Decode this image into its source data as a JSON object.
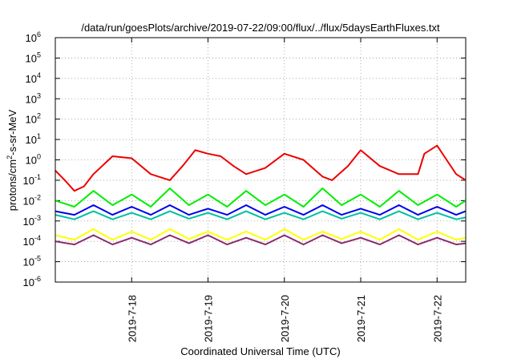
{
  "chart_data": {
    "type": "line",
    "title": "/data/run/goesPlots/archive/2019-07-22/09:00/flux/../flux/5daysEarthFluxes.txt",
    "xlabel": "Coordinated Universal Time (UTC)",
    "ylabel_parts": {
      "pre": "protons/cm",
      "sup": "2",
      "post": "-s-sr-MeV"
    },
    "y_scale": "log",
    "ylim": [
      1e-06,
      1000000.0
    ],
    "y_ticks": [
      {
        "value": 1e-06,
        "base": "10",
        "exp": "-6"
      },
      {
        "value": 1e-05,
        "base": "10",
        "exp": "-5"
      },
      {
        "value": 0.0001,
        "base": "10",
        "exp": "-4"
      },
      {
        "value": 0.001,
        "base": "10",
        "exp": "-3"
      },
      {
        "value": 0.01,
        "base": "10",
        "exp": "-2"
      },
      {
        "value": 0.1,
        "base": "10",
        "exp": "-1"
      },
      {
        "value": 1,
        "base": "10",
        "exp": "0"
      },
      {
        "value": 10,
        "base": "10",
        "exp": "1"
      },
      {
        "value": 100,
        "base": "10",
        "exp": "2"
      },
      {
        "value": 1000,
        "base": "10",
        "exp": "3"
      },
      {
        "value": 10000,
        "base": "10",
        "exp": "4"
      },
      {
        "value": 100000,
        "base": "10",
        "exp": "5"
      },
      {
        "value": 1000000,
        "base": "10",
        "exp": "6"
      }
    ],
    "xlim": [
      "2019-07-17T00:00",
      "2019-07-22T09:00"
    ],
    "x_ticks": [
      {
        "value": "2019-07-18",
        "label": "2019-7-18"
      },
      {
        "value": "2019-07-19",
        "label": "2019-7-19"
      },
      {
        "value": "2019-07-20",
        "label": "2019-7-20"
      },
      {
        "value": "2019-07-21",
        "label": "2019-7-21"
      },
      {
        "value": "2019-07-22",
        "label": "2019-7-22"
      }
    ],
    "grid": true,
    "legend": "none",
    "series": [
      {
        "color": "#8b2a6e",
        "x": [
          "2019-07-17T00:00",
          "2019-07-17T06:00",
          "2019-07-17T12:00",
          "2019-07-17T18:00",
          "2019-07-18T00:00",
          "2019-07-18T06:00",
          "2019-07-18T12:00",
          "2019-07-18T18:00",
          "2019-07-19T00:00",
          "2019-07-19T06:00",
          "2019-07-19T12:00",
          "2019-07-19T18:00",
          "2019-07-20T00:00",
          "2019-07-20T06:00",
          "2019-07-20T12:00",
          "2019-07-20T18:00",
          "2019-07-21T00:00",
          "2019-07-21T06:00",
          "2019-07-21T12:00",
          "2019-07-21T18:00",
          "2019-07-22T00:00",
          "2019-07-22T06:00",
          "2019-07-22T09:00"
        ],
        "y": [
          0.0001,
          7e-05,
          0.0002,
          7e-05,
          0.00015,
          7e-05,
          0.0002,
          8e-05,
          0.0002,
          7e-05,
          0.00015,
          7e-05,
          0.0002,
          7e-05,
          0.0002,
          8e-05,
          0.00015,
          7e-05,
          0.0002,
          7e-05,
          0.00015,
          7e-05,
          8e-05
        ]
      },
      {
        "color": "#ffff00",
        "x": [
          "2019-07-17T00:00",
          "2019-07-17T06:00",
          "2019-07-17T12:00",
          "2019-07-17T18:00",
          "2019-07-18T00:00",
          "2019-07-18T06:00",
          "2019-07-18T12:00",
          "2019-07-18T18:00",
          "2019-07-19T00:00",
          "2019-07-19T06:00",
          "2019-07-19T12:00",
          "2019-07-19T18:00",
          "2019-07-20T00:00",
          "2019-07-20T06:00",
          "2019-07-20T12:00",
          "2019-07-20T18:00",
          "2019-07-21T00:00",
          "2019-07-21T06:00",
          "2019-07-21T12:00",
          "2019-07-21T18:00",
          "2019-07-22T00:00",
          "2019-07-22T06:00",
          "2019-07-22T09:00"
        ],
        "y": [
          0.0002,
          0.00012,
          0.0004,
          0.00012,
          0.0003,
          0.00012,
          0.0004,
          0.00013,
          0.0003,
          0.00012,
          0.0003,
          0.00012,
          0.0004,
          0.00012,
          0.0003,
          0.00013,
          0.0003,
          0.00012,
          0.0004,
          0.00012,
          0.0003,
          0.00012,
          0.00015
        ]
      },
      {
        "color": "#00c0a0",
        "x": [
          "2019-07-17T00:00",
          "2019-07-17T06:00",
          "2019-07-17T12:00",
          "2019-07-17T18:00",
          "2019-07-18T00:00",
          "2019-07-18T06:00",
          "2019-07-18T12:00",
          "2019-07-18T18:00",
          "2019-07-19T00:00",
          "2019-07-19T06:00",
          "2019-07-19T12:00",
          "2019-07-19T18:00",
          "2019-07-20T00:00",
          "2019-07-20T06:00",
          "2019-07-20T12:00",
          "2019-07-20T18:00",
          "2019-07-21T00:00",
          "2019-07-21T06:00",
          "2019-07-21T12:00",
          "2019-07-21T18:00",
          "2019-07-22T00:00",
          "2019-07-22T06:00",
          "2019-07-22T09:00"
        ],
        "y": [
          0.002,
          0.0012,
          0.003,
          0.0012,
          0.0025,
          0.0012,
          0.003,
          0.0013,
          0.0025,
          0.0012,
          0.003,
          0.0012,
          0.0025,
          0.0012,
          0.003,
          0.0013,
          0.0025,
          0.0012,
          0.003,
          0.0012,
          0.0025,
          0.0012,
          0.0015
        ]
      },
      {
        "color": "#0000ee",
        "x": [
          "2019-07-17T00:00",
          "2019-07-17T06:00",
          "2019-07-17T12:00",
          "2019-07-17T18:00",
          "2019-07-18T00:00",
          "2019-07-18T06:00",
          "2019-07-18T12:00",
          "2019-07-18T18:00",
          "2019-07-19T00:00",
          "2019-07-19T06:00",
          "2019-07-19T12:00",
          "2019-07-19T18:00",
          "2019-07-20T00:00",
          "2019-07-20T06:00",
          "2019-07-20T12:00",
          "2019-07-20T18:00",
          "2019-07-21T00:00",
          "2019-07-21T06:00",
          "2019-07-21T12:00",
          "2019-07-21T18:00",
          "2019-07-22T00:00",
          "2019-07-22T06:00",
          "2019-07-22T09:00"
        ],
        "y": [
          0.003,
          0.002,
          0.006,
          0.002,
          0.005,
          0.002,
          0.006,
          0.002,
          0.004,
          0.002,
          0.006,
          0.002,
          0.005,
          0.002,
          0.006,
          0.002,
          0.004,
          0.002,
          0.006,
          0.002,
          0.005,
          0.002,
          0.003
        ]
      },
      {
        "color": "#00ee00",
        "x": [
          "2019-07-17T00:00",
          "2019-07-17T06:00",
          "2019-07-17T12:00",
          "2019-07-17T18:00",
          "2019-07-18T00:00",
          "2019-07-18T06:00",
          "2019-07-18T12:00",
          "2019-07-18T18:00",
          "2019-07-19T00:00",
          "2019-07-19T06:00",
          "2019-07-19T12:00",
          "2019-07-19T18:00",
          "2019-07-20T00:00",
          "2019-07-20T06:00",
          "2019-07-20T12:00",
          "2019-07-20T18:00",
          "2019-07-21T00:00",
          "2019-07-21T06:00",
          "2019-07-21T12:00",
          "2019-07-21T18:00",
          "2019-07-22T00:00",
          "2019-07-22T06:00",
          "2019-07-22T09:00"
        ],
        "y": [
          0.01,
          0.005,
          0.03,
          0.006,
          0.02,
          0.005,
          0.04,
          0.006,
          0.02,
          0.005,
          0.03,
          0.006,
          0.02,
          0.005,
          0.04,
          0.006,
          0.02,
          0.005,
          0.03,
          0.006,
          0.02,
          0.005,
          0.01
        ]
      },
      {
        "color": "#ee0000",
        "x": [
          "2019-07-17T00:00",
          "2019-07-17T03:00",
          "2019-07-17T06:00",
          "2019-07-17T09:00",
          "2019-07-17T12:00",
          "2019-07-17T18:00",
          "2019-07-18T00:00",
          "2019-07-18T06:00",
          "2019-07-18T12:00",
          "2019-07-18T16:00",
          "2019-07-18T20:00",
          "2019-07-19T00:00",
          "2019-07-19T04:00",
          "2019-07-19T08:00",
          "2019-07-19T12:00",
          "2019-07-19T18:00",
          "2019-07-20T00:00",
          "2019-07-20T06:00",
          "2019-07-20T12:00",
          "2019-07-20T15:00",
          "2019-07-20T20:00",
          "2019-07-21T00:00",
          "2019-07-21T06:00",
          "2019-07-21T12:00",
          "2019-07-21T18:00",
          "2019-07-21T20:00",
          "2019-07-22T00:00",
          "2019-07-22T03:00",
          "2019-07-22T06:00",
          "2019-07-22T09:00"
        ],
        "y": [
          0.3,
          0.1,
          0.03,
          0.05,
          0.2,
          1.5,
          1.2,
          0.2,
          0.1,
          0.5,
          3,
          2,
          1.5,
          0.5,
          0.2,
          0.4,
          2,
          1,
          0.15,
          0.1,
          0.5,
          3,
          0.5,
          0.2,
          0.2,
          2,
          5,
          1,
          0.2,
          0.1
        ]
      }
    ]
  }
}
